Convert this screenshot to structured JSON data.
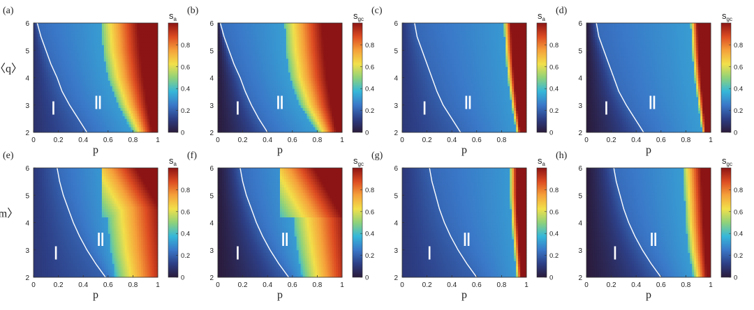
{
  "figure": {
    "colorscale": [
      "#2b1b3b",
      "#2d3f86",
      "#3a78c8",
      "#36b7d9",
      "#8fd27a",
      "#f2e04a",
      "#f5a13a",
      "#dd4c22",
      "#8c1414"
    ],
    "boundary_color": "#ffffff"
  },
  "chart_data": [
    {
      "panel_label": "(a)",
      "type": "heatmap",
      "xlabel": "p",
      "ylabel": "〈q〉",
      "colorbar_label": "s",
      "colorbar_sub": "a",
      "xlim": [
        0,
        1
      ],
      "ylim": [
        2,
        6
      ],
      "xticks": [
        "0",
        "0.2",
        "0.4",
        "0.6",
        "0.8",
        "1"
      ],
      "yticks": [
        "2",
        "3",
        "4",
        "5",
        "6"
      ],
      "cticks": [
        "0",
        "0.2",
        "0.4",
        "0.6",
        "0.8"
      ],
      "clim": [
        0,
        1
      ],
      "region_labels": [
        {
          "text": "Ⅰ",
          "x": 0.16,
          "y": 2.8
        },
        {
          "text": "Ⅱ",
          "x": 0.52,
          "y": 3.0
        }
      ],
      "boundary": [
        [
          0.43,
          2.0
        ],
        [
          0.36,
          2.5
        ],
        [
          0.29,
          3.0
        ],
        [
          0.23,
          3.5
        ],
        [
          0.19,
          4.0
        ],
        [
          0.14,
          4.5
        ],
        [
          0.1,
          5.0
        ],
        [
          0.06,
          5.5
        ],
        [
          0.03,
          6.0
        ]
      ],
      "field": {
        "base": 0.08,
        "slope": 0.45,
        "front": [
          [
            2,
            0.8
          ],
          [
            3,
            0.68
          ],
          [
            4,
            0.6
          ],
          [
            5,
            0.56
          ],
          [
            6,
            0.55
          ]
        ],
        "grow": 1.4,
        "hi": 1.0,
        "dark": 0.0
      }
    },
    {
      "panel_label": "(b)",
      "type": "heatmap",
      "xlabel": "p",
      "ylabel": "",
      "colorbar_label": "s",
      "colorbar_sub": "gc",
      "xlim": [
        0,
        1
      ],
      "ylim": [
        2,
        6
      ],
      "xticks": [
        "0",
        "0.2",
        "0.4",
        "0.6",
        "0.8",
        "1"
      ],
      "yticks": [
        "2",
        "3",
        "4",
        "5",
        "6"
      ],
      "cticks": [
        "0",
        "0.2",
        "0.4",
        "0.6",
        "0.8"
      ],
      "clim": [
        0,
        1
      ],
      "region_labels": [
        {
          "text": "Ⅰ",
          "x": 0.16,
          "y": 2.8
        },
        {
          "text": "Ⅱ",
          "x": 0.5,
          "y": 3.0
        }
      ],
      "boundary": [
        [
          0.4,
          2.0
        ],
        [
          0.33,
          2.5
        ],
        [
          0.27,
          3.0
        ],
        [
          0.22,
          3.5
        ],
        [
          0.18,
          4.0
        ],
        [
          0.13,
          4.5
        ],
        [
          0.09,
          5.0
        ],
        [
          0.05,
          5.5
        ],
        [
          0.02,
          6.0
        ]
      ],
      "field": {
        "base": 0.0,
        "slope": 0.5,
        "front": [
          [
            2,
            0.8
          ],
          [
            3,
            0.66
          ],
          [
            4,
            0.58
          ],
          [
            5,
            0.55
          ],
          [
            6,
            0.54
          ]
        ],
        "grow": 1.4,
        "hi": 1.0,
        "dark": 0.25
      }
    },
    {
      "panel_label": "(c)",
      "type": "heatmap",
      "xlabel": "p",
      "ylabel": "",
      "colorbar_label": "s",
      "colorbar_sub": "a",
      "xlim": [
        0,
        1
      ],
      "ylim": [
        2,
        6
      ],
      "xticks": [
        "0",
        "0.2",
        "0.4",
        "0.6",
        "0.8"
      ],
      "yticks": [
        "2",
        "3",
        "4",
        "5",
        "6"
      ],
      "cticks": [
        "0",
        "0.2",
        "0.4",
        "0.6",
        "0.8"
      ],
      "clim": [
        0,
        1
      ],
      "region_labels": [
        {
          "text": "Ⅰ",
          "x": 0.18,
          "y": 2.8
        },
        {
          "text": "Ⅱ",
          "x": 0.53,
          "y": 3.0
        }
      ],
      "boundary": [
        [
          0.47,
          2.0
        ],
        [
          0.4,
          2.5
        ],
        [
          0.33,
          3.0
        ],
        [
          0.28,
          3.5
        ],
        [
          0.24,
          4.0
        ],
        [
          0.2,
          4.5
        ],
        [
          0.16,
          5.0
        ],
        [
          0.12,
          5.5
        ],
        [
          0.1,
          6.0
        ]
      ],
      "field": {
        "base": 0.1,
        "slope": 0.3,
        "front": [
          [
            2,
            0.92
          ],
          [
            3,
            0.88
          ],
          [
            4,
            0.85
          ],
          [
            5,
            0.83
          ],
          [
            6,
            0.82
          ]
        ],
        "grow": 2.6,
        "hi": 1.0,
        "dark": 0.0
      }
    },
    {
      "panel_label": "(d)",
      "type": "heatmap",
      "xlabel": "p",
      "ylabel": "",
      "colorbar_label": "s",
      "colorbar_sub": "gc",
      "xlim": [
        0,
        1
      ],
      "ylim": [
        2,
        6
      ],
      "xticks": [
        "0",
        "0.2",
        "0.4",
        "0.6",
        "0.8",
        "1"
      ],
      "yticks": [
        "2",
        "3",
        "4",
        "5",
        "6"
      ],
      "cticks": [
        "0",
        "0.2",
        "0.4",
        "0.6",
        "0.8"
      ],
      "clim": [
        0,
        1
      ],
      "region_labels": [
        {
          "text": "Ⅰ",
          "x": 0.16,
          "y": 2.8
        },
        {
          "text": "Ⅱ",
          "x": 0.53,
          "y": 3.0
        }
      ],
      "boundary": [
        [
          0.46,
          2.0
        ],
        [
          0.39,
          2.5
        ],
        [
          0.32,
          3.0
        ],
        [
          0.26,
          3.5
        ],
        [
          0.22,
          4.0
        ],
        [
          0.18,
          4.5
        ],
        [
          0.14,
          5.0
        ],
        [
          0.1,
          5.5
        ],
        [
          0.08,
          6.0
        ]
      ],
      "field": {
        "base": 0.0,
        "slope": 0.45,
        "front": [
          [
            2,
            0.93
          ],
          [
            3,
            0.9
          ],
          [
            4,
            0.87
          ],
          [
            5,
            0.85
          ],
          [
            6,
            0.84
          ]
        ],
        "grow": 2.4,
        "hi": 1.0,
        "dark": 0.25
      }
    },
    {
      "panel_label": "(e)",
      "type": "heatmap",
      "xlabel": "p",
      "ylabel": "m〉",
      "colorbar_label": "s",
      "colorbar_sub": "a",
      "xlim": [
        0,
        1
      ],
      "ylim": [
        2,
        6
      ],
      "xticks": [
        "0",
        "0.2",
        "0.4",
        "0.6",
        "0.8",
        "1"
      ],
      "yticks": [
        "2",
        "3",
        "4",
        "5",
        "6"
      ],
      "cticks": [
        "0",
        "0.2",
        "0.4",
        "0.6",
        "0.8"
      ],
      "clim": [
        0,
        1
      ],
      "region_labels": [
        {
          "text": "Ⅰ",
          "x": 0.18,
          "y": 2.8
        },
        {
          "text": "Ⅱ",
          "x": 0.54,
          "y": 3.3
        }
      ],
      "boundary": [
        [
          0.58,
          2.0
        ],
        [
          0.5,
          2.5
        ],
        [
          0.43,
          3.0
        ],
        [
          0.37,
          3.5
        ],
        [
          0.32,
          4.0
        ],
        [
          0.28,
          4.5
        ],
        [
          0.24,
          5.0
        ],
        [
          0.21,
          5.5
        ],
        [
          0.19,
          6.0
        ]
      ],
      "field": {
        "base": 0.1,
        "slope": 0.4,
        "front": [
          [
            2,
            0.66
          ],
          [
            3,
            0.62
          ],
          [
            4,
            0.6
          ],
          [
            5,
            0.59
          ],
          [
            6,
            0.58
          ]
        ],
        "grow": 1.0,
        "hi": 1.0,
        "dark": 0.0,
        "corner": 0.55
      }
    },
    {
      "panel_label": "(f)",
      "type": "heatmap",
      "xlabel": "p",
      "ylabel": "",
      "colorbar_label": "s",
      "colorbar_sub": "gc",
      "xlim": [
        0,
        1
      ],
      "ylim": [
        2,
        6
      ],
      "xticks": [
        "0",
        "0.2",
        "0.4",
        "0.6",
        "0.8",
        "1"
      ],
      "yticks": [
        "2",
        "3",
        "4",
        "5",
        "6"
      ],
      "cticks": [
        "0",
        "0.2",
        "0.4",
        "0.6",
        "0.8"
      ],
      "clim": [
        0,
        1
      ],
      "region_labels": [
        {
          "text": "Ⅰ",
          "x": 0.16,
          "y": 2.8
        },
        {
          "text": "Ⅱ",
          "x": 0.54,
          "y": 3.3
        }
      ],
      "boundary": [
        [
          0.57,
          2.0
        ],
        [
          0.49,
          2.5
        ],
        [
          0.42,
          3.0
        ],
        [
          0.36,
          3.5
        ],
        [
          0.31,
          4.0
        ],
        [
          0.27,
          4.5
        ],
        [
          0.23,
          5.0
        ],
        [
          0.2,
          5.5
        ],
        [
          0.18,
          6.0
        ]
      ],
      "field": {
        "base": 0.0,
        "slope": 0.45,
        "front": [
          [
            2,
            0.68
          ],
          [
            3,
            0.64
          ],
          [
            4,
            0.61
          ],
          [
            5,
            0.6
          ],
          [
            6,
            0.59
          ]
        ],
        "grow": 1.0,
        "hi": 1.0,
        "dark": 0.35,
        "corner": 0.5
      }
    },
    {
      "panel_label": "(g)",
      "type": "heatmap",
      "xlabel": "p",
      "ylabel": "",
      "colorbar_label": "s",
      "colorbar_sub": "a",
      "xlim": [
        0,
        1
      ],
      "ylim": [
        2,
        6
      ],
      "xticks": [
        "0",
        "0.2",
        "0.4",
        "0.6",
        "0.8",
        "1"
      ],
      "yticks": [
        "2",
        "3",
        "4",
        "5",
        "6"
      ],
      "cticks": [
        "0",
        "0.2",
        "0.4",
        "0.6",
        "0.8"
      ],
      "clim": [
        0,
        1
      ],
      "region_labels": [
        {
          "text": "Ⅰ",
          "x": 0.22,
          "y": 2.8
        },
        {
          "text": "Ⅱ",
          "x": 0.52,
          "y": 3.3
        }
      ],
      "boundary": [
        [
          0.6,
          2.0
        ],
        [
          0.52,
          2.5
        ],
        [
          0.45,
          3.0
        ],
        [
          0.39,
          3.5
        ],
        [
          0.34,
          4.0
        ],
        [
          0.3,
          4.5
        ],
        [
          0.27,
          5.0
        ],
        [
          0.24,
          5.5
        ],
        [
          0.22,
          6.0
        ]
      ],
      "field": {
        "base": 0.1,
        "slope": 0.3,
        "front": [
          [
            2,
            0.92
          ],
          [
            3,
            0.9
          ],
          [
            4,
            0.88
          ],
          [
            5,
            0.87
          ],
          [
            6,
            0.87
          ]
        ],
        "grow": 2.2,
        "hi": 1.0,
        "dark": 0.0
      }
    },
    {
      "panel_label": "(h)",
      "type": "heatmap",
      "xlabel": "p",
      "ylabel": "",
      "colorbar_label": "s",
      "colorbar_sub": "gc",
      "xlim": [
        0,
        1
      ],
      "ylim": [
        2,
        6
      ],
      "xticks": [
        "0",
        "0.2",
        "0.4",
        "0.6",
        "0.8",
        "1"
      ],
      "yticks": [
        "2",
        "3",
        "4",
        "5",
        "6"
      ],
      "cticks": [
        "0",
        "0.2",
        "0.4",
        "0.6",
        "0.8"
      ],
      "clim": [
        0,
        1
      ],
      "region_labels": [
        {
          "text": "Ⅰ",
          "x": 0.23,
          "y": 2.8
        },
        {
          "text": "Ⅱ",
          "x": 0.54,
          "y": 3.3
        }
      ],
      "boundary": [
        [
          0.6,
          2.0
        ],
        [
          0.52,
          2.5
        ],
        [
          0.45,
          3.0
        ],
        [
          0.39,
          3.5
        ],
        [
          0.34,
          4.0
        ],
        [
          0.3,
          4.5
        ],
        [
          0.27,
          5.0
        ],
        [
          0.24,
          5.5
        ],
        [
          0.22,
          6.0
        ]
      ],
      "field": {
        "base": 0.0,
        "slope": 0.45,
        "front": [
          [
            2,
            0.86
          ],
          [
            3,
            0.82
          ],
          [
            4,
            0.8
          ],
          [
            5,
            0.79
          ],
          [
            6,
            0.78
          ]
        ],
        "grow": 1.4,
        "hi": 1.0,
        "dark": 0.35
      }
    }
  ]
}
